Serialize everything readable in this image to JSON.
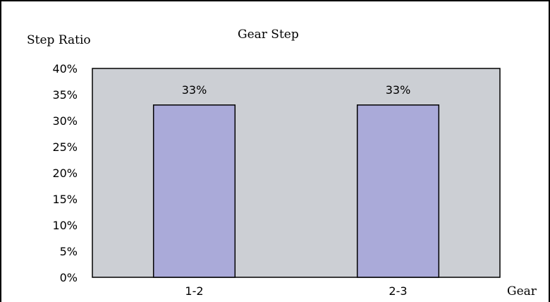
{
  "chart_data": {
    "type": "bar",
    "title": "Gear Step",
    "ylabel": "Step Ratio",
    "xlabel": "Gear",
    "categories": [
      "1-2",
      "2-3"
    ],
    "values": [
      33,
      33
    ],
    "data_labels": [
      "33%",
      "33%"
    ],
    "ylim": [
      0,
      40
    ],
    "y_ticks": [
      0,
      5,
      10,
      15,
      20,
      25,
      30,
      35,
      40
    ],
    "y_tick_format": "percent",
    "grid": false,
    "legend": "none",
    "colors": {
      "bar_fill": "#aaaad9",
      "plot_background": "#cccfd4",
      "outline": "#000000"
    }
  }
}
